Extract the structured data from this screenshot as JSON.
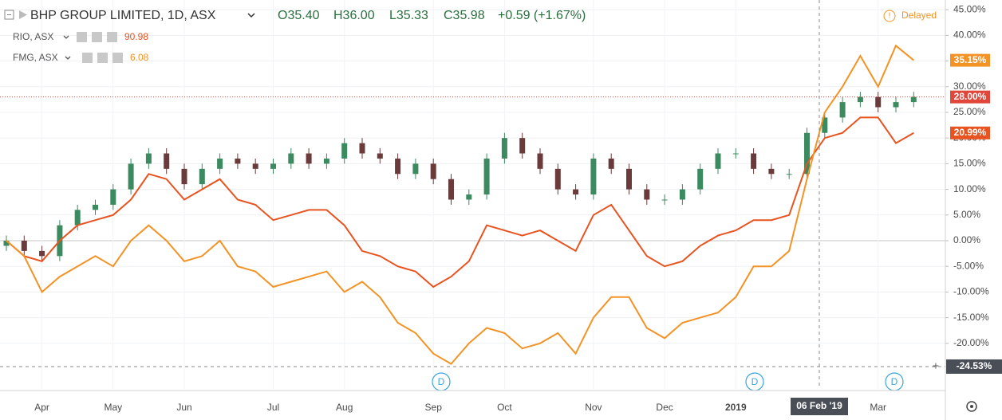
{
  "chart_data": {
    "type": "candlestick",
    "title": "BHP GROUP LIMITED, 1D, ASX",
    "quote": [
      "O35.40",
      "H36.00",
      "L35.33",
      "C35.98",
      "+0.59 (+1.67%)"
    ],
    "status": "Delayed",
    "categories": [
      null,
      null,
      "Apr",
      null,
      null,
      null,
      "May",
      null,
      null,
      null,
      "Jun",
      null,
      null,
      null,
      null,
      "Jul",
      null,
      null,
      null,
      "Aug",
      null,
      null,
      null,
      null,
      "Sep",
      null,
      null,
      null,
      "Oct",
      null,
      null,
      null,
      null,
      "Nov",
      null,
      null,
      null,
      "Dec",
      null,
      null,
      null,
      "2019",
      null,
      null,
      null,
      null,
      null,
      null,
      null,
      "Mar",
      null,
      null
    ],
    "candles": {
      "up_color": "#3c8a5f",
      "down_color": "#6b3a3a",
      "open": [
        -1,
        0,
        -2,
        -3,
        3,
        6,
        7,
        10,
        15,
        17,
        14,
        11,
        14,
        16,
        15,
        14,
        15,
        17,
        15,
        16,
        19,
        17,
        16,
        13,
        15,
        12,
        8,
        9,
        16,
        20,
        17,
        14,
        10,
        9,
        16,
        14,
        10,
        8,
        8,
        10,
        14,
        17,
        17,
        14,
        13,
        13,
        21,
        24,
        27,
        28,
        26,
        27
      ],
      "high": [
        1,
        1,
        -1,
        4,
        7,
        8,
        11,
        16,
        18,
        18,
        15,
        15,
        17,
        17,
        16,
        16,
        18,
        18,
        17,
        20,
        20,
        18,
        17,
        16,
        16,
        13,
        10,
        17,
        21,
        21,
        18,
        15,
        11,
        17,
        17,
        15,
        11,
        9,
        11,
        15,
        18,
        18,
        18,
        15,
        14,
        22,
        25,
        28,
        29,
        29,
        28,
        29
      ],
      "low": [
        -2,
        -3,
        -4,
        -4,
        2,
        5,
        6,
        9,
        14,
        13,
        10,
        10,
        13,
        14,
        13,
        13,
        14,
        14,
        14,
        15,
        16,
        15,
        12,
        12,
        11,
        7,
        7,
        8,
        15,
        16,
        13,
        9,
        8,
        8,
        13,
        9,
        7,
        7,
        7,
        9,
        13,
        16,
        13,
        12,
        12,
        12,
        20,
        23,
        26,
        25,
        25,
        26
      ],
      "close": [
        0,
        -2,
        -3,
        3,
        6,
        7,
        10,
        15,
        17,
        14,
        11,
        14,
        16,
        15,
        14,
        15,
        17,
        15,
        16,
        19,
        17,
        16,
        13,
        15,
        12,
        8,
        9,
        16,
        20,
        17,
        14,
        10,
        9,
        16,
        14,
        10,
        8,
        8,
        10,
        14,
        17,
        17,
        14,
        13,
        13,
        21,
        24,
        27,
        28,
        26,
        27,
        28
      ],
      "value_label": "28.00%",
      "label_color": "#e0463a"
    },
    "series": [
      {
        "name": "RIO, ASX",
        "last_price": 90.98,
        "color": "#e8531f",
        "values": [
          0,
          -3,
          -4,
          0,
          3,
          4,
          5,
          8,
          13,
          12,
          8,
          10,
          12,
          8,
          7,
          4,
          5,
          6,
          6,
          3,
          -2,
          -3,
          -5,
          -6,
          -9,
          -7,
          -4,
          3,
          2,
          1,
          2,
          0,
          -2,
          5,
          7,
          2,
          -3,
          -5,
          -4,
          -1,
          1,
          2,
          4,
          4,
          5,
          15,
          20,
          21,
          24,
          24,
          19,
          20.99
        ],
        "value_label": "20.99%"
      },
      {
        "name": "FMG, ASX",
        "last_price": 6.08,
        "color": "#f39325",
        "values": [
          0,
          -3,
          -10,
          -7,
          -5,
          -3,
          -5,
          0,
          3,
          0,
          -4,
          -3,
          0,
          -5,
          -6,
          -9,
          -8,
          -7,
          -6,
          -10,
          -8,
          -11,
          -16,
          -18,
          -22,
          -24,
          -20,
          -17,
          -18,
          -21,
          -20,
          -18,
          -22,
          -15,
          -11,
          -11,
          -17,
          -19,
          -16,
          -15,
          -14,
          -11,
          -5,
          -5,
          -2,
          12,
          25,
          30,
          36,
          30,
          38,
          35.15
        ],
        "value_label": "35.15%"
      }
    ],
    "dividends": [
      "D",
      "D",
      "D"
    ],
    "crosshair": {
      "y": -24.53,
      "y_label": "-24.53%",
      "x_label": "06 Feb '19"
    },
    "ylim": [
      -28.88,
      46.89
    ],
    "yticks": [
      {
        "value": -20,
        "label": "-20.00%"
      },
      {
        "value": -15,
        "label": "-15.00%"
      },
      {
        "value": -10,
        "label": "-10.00%"
      },
      {
        "value": -5,
        "label": "-5.00%"
      },
      {
        "value": 0,
        "label": "0.00%"
      },
      {
        "value": 5,
        "label": "5.00%"
      },
      {
        "value": 10,
        "label": "10.00%"
      },
      {
        "value": 15,
        "label": "15.00%"
      },
      {
        "value": 20,
        "label": "20.00%"
      },
      {
        "value": 25,
        "label": "25.00%"
      },
      {
        "value": 30,
        "label": "30.00%"
      },
      {
        "value": 35,
        "label": "35.00%"
      },
      {
        "value": 40,
        "label": "40.00%"
      },
      {
        "value": 45,
        "label": "45.00%"
      }
    ],
    "grid": true
  }
}
